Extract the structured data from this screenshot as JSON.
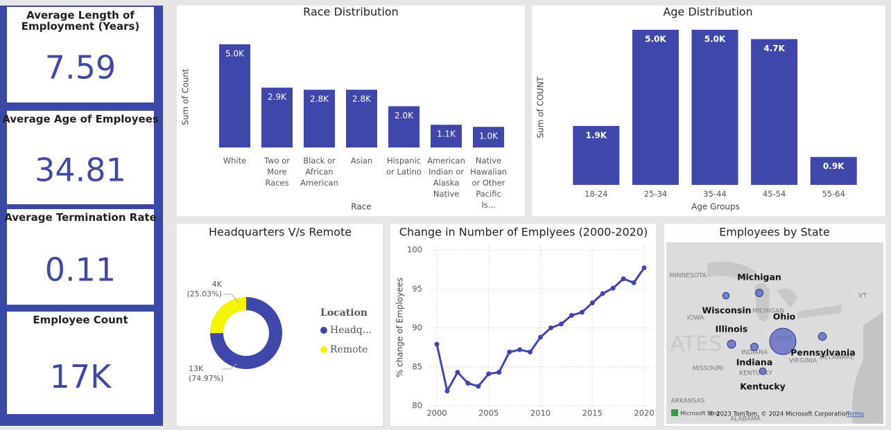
{
  "cards": [
    {
      "title": "Average Length of Employment (Years)",
      "value": "7.59"
    },
    {
      "title": "Average Age of Employees",
      "value": "34.81"
    },
    {
      "title": "Average Termination Rate",
      "value": "0.11"
    },
    {
      "title": "Employee Count",
      "value": "17K"
    }
  ],
  "chart_data": [
    {
      "type": "bar",
      "title": "Race Distribution",
      "x_label": "Race",
      "y_label": "Sum of Count",
      "categories": [
        "White",
        "Two or More Races",
        "Black or African American",
        "Asian",
        "Hispanic or Latino",
        "American Indian or Alaska Native",
        "Native Hawaiian or Other Pacific Is..."
      ],
      "values": [
        5000,
        2900,
        2800,
        2800,
        2000,
        1100,
        1000
      ],
      "value_labels": [
        "5.0K",
        "2.9K",
        "2.8K",
        "2.8K",
        "2.0K",
        "1.1K",
        "1.0K"
      ],
      "color": "#3f48aa",
      "ylim": [
        0,
        5000
      ]
    },
    {
      "type": "bar",
      "title": "Age Distribution",
      "x_label": "Age Groups",
      "y_label": "Sum of COUNT",
      "categories": [
        "18-24",
        "25-34",
        "35-44",
        "45-54",
        "55-64"
      ],
      "values": [
        1900,
        5000,
        5000,
        4700,
        900
      ],
      "value_labels": [
        "1.9K",
        "5.0K",
        "5.0K",
        "4.7K",
        "0.9K"
      ],
      "color": "#3f48aa",
      "ylim": [
        0,
        5000
      ]
    },
    {
      "type": "donut",
      "title": "Headquarters V/s Remote",
      "legend_title": "Location",
      "series": [
        {
          "name": "Headq...",
          "color": "#3f48aa",
          "value": 13000,
          "value_label": "13K",
          "percent": 74.97,
          "percent_label": "(74.97%)"
        },
        {
          "name": "Remote",
          "color": "#f5f500",
          "value": 4000,
          "value_label": "4K",
          "percent": 25.03,
          "percent_label": "(25.03%)"
        }
      ]
    },
    {
      "type": "line",
      "title": "Change in Number of Emplyees (2000-2020)",
      "y_label": "% change of Employees",
      "x": [
        2000,
        2001,
        2002,
        2003,
        2004,
        2005,
        2006,
        2007,
        2008,
        2009,
        2010,
        2011,
        2012,
        2013,
        2014,
        2015,
        2016,
        2017,
        2018,
        2019,
        2020
      ],
      "values": [
        87.9,
        81.9,
        84.3,
        82.9,
        82.5,
        84.1,
        84.3,
        86.9,
        87.2,
        86.9,
        88.8,
        90.0,
        90.5,
        91.6,
        92.0,
        93.2,
        94.4,
        95.1,
        96.3,
        95.8,
        97.7
      ],
      "color": "#3f48aa",
      "xlim": [
        2000,
        2020
      ],
      "ylim": [
        80,
        100
      ],
      "xticks": [
        2000,
        2005,
        2010,
        2015,
        2020
      ],
      "yticks": [
        80,
        85,
        90,
        95,
        100
      ],
      "grid": true
    },
    {
      "type": "map",
      "title": "Employees by State",
      "categories": [
        "Michigan",
        "Wisconsin",
        "Illinois",
        "Ohio",
        "Indiana",
        "Pennsylvania",
        "Kentucky"
      ],
      "values": [
        900,
        700,
        1100,
        11000,
        900,
        1000,
        700
      ],
      "color": "#5563c0",
      "base_labels": [
        "MINNESOTA",
        "IOWA",
        "MISSOURI",
        "MICHIGAN",
        "INDIANA",
        "VIRGINIA",
        "KENTUCKY",
        "DELAWARE",
        "ARKANSAS",
        "ALABAMA",
        "OHIO",
        "VT",
        "ATES"
      ],
      "attribution": "Microsoft Bing",
      "copyright": "© 2023 TomTom, © 2024 Microsoft Corporation",
      "terms": "Terms"
    }
  ]
}
